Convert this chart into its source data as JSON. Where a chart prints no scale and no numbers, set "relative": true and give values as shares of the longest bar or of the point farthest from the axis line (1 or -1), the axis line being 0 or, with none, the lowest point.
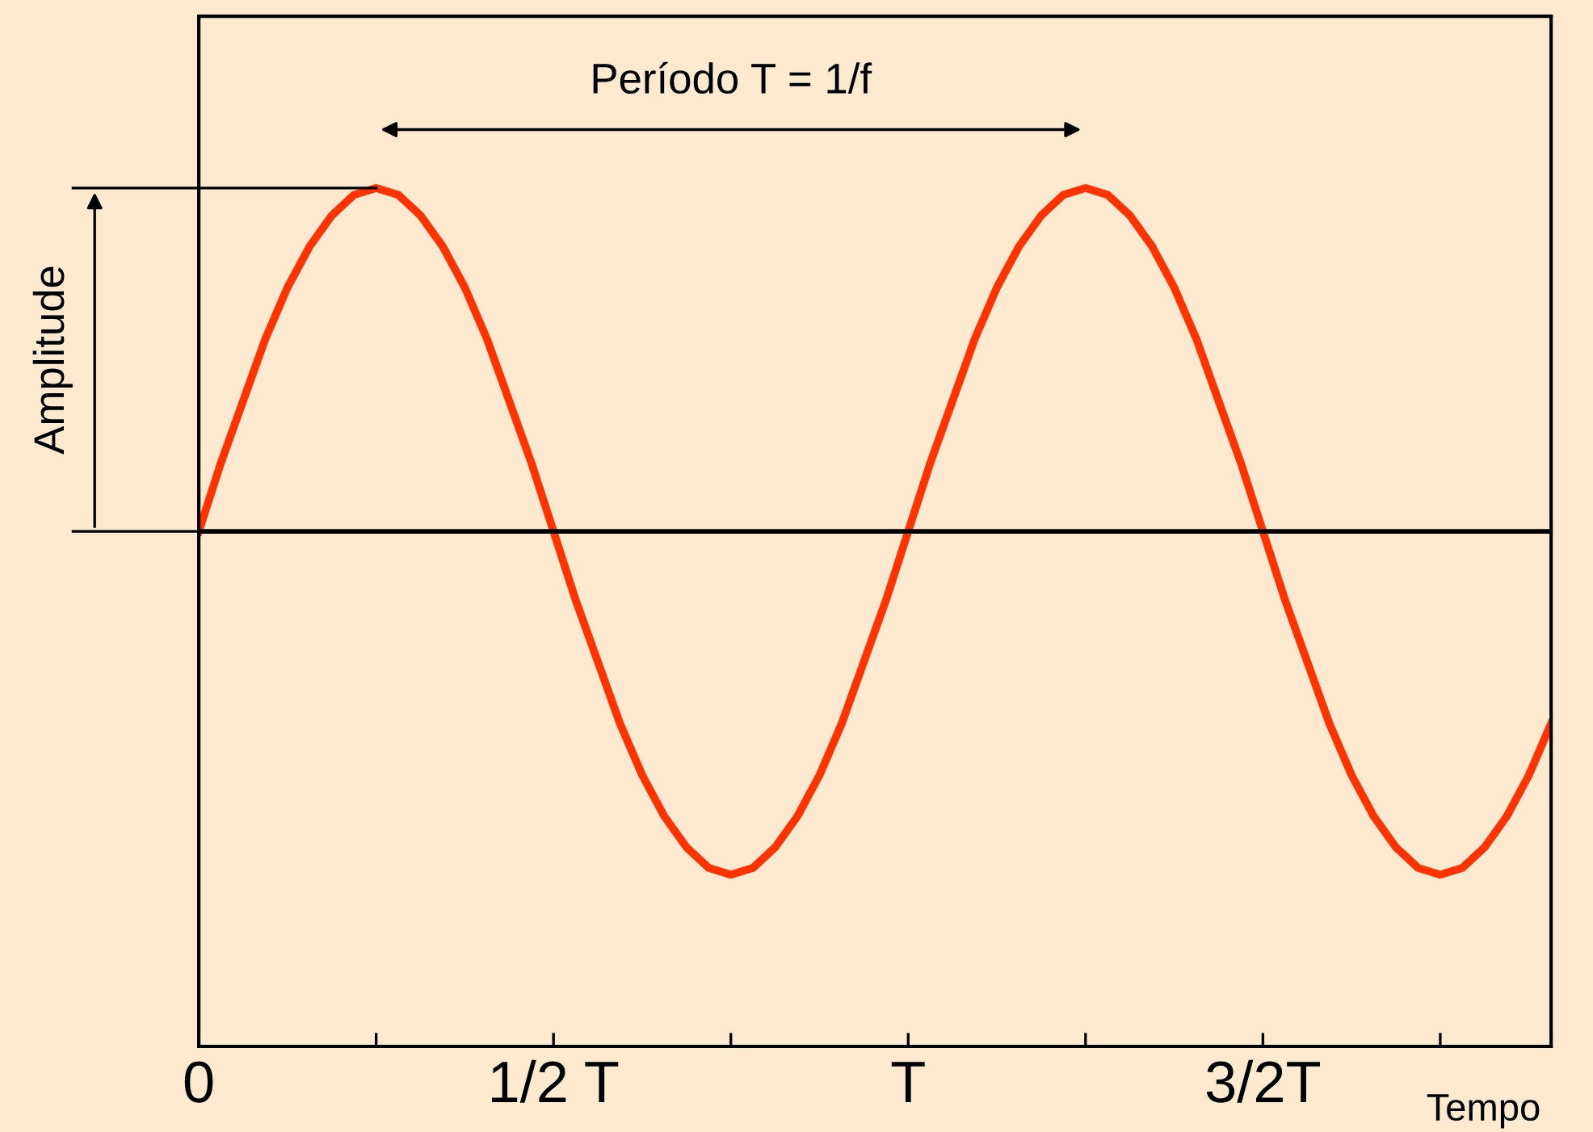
{
  "chart_data": {
    "type": "line",
    "relative": true,
    "xlabel": "Tempo",
    "categories": [
      "0",
      null,
      null,
      null,
      null,
      null,
      null,
      null,
      null,
      null,
      null,
      null,
      null,
      null,
      null,
      null,
      "1/2 T",
      null,
      null,
      null,
      null,
      null,
      null,
      null,
      null,
      null,
      null,
      null,
      null,
      null,
      null,
      null,
      "T",
      null,
      null,
      null,
      null,
      null,
      null,
      null,
      null,
      null,
      null,
      null,
      null,
      null,
      null,
      null,
      "3/2T",
      null,
      null,
      null,
      null,
      null,
      null,
      null,
      null,
      null,
      null,
      null,
      null,
      null
    ],
    "series": [
      {
        "color": "#ff3300",
        "values": [
          0,
          0.2,
          0.38,
          0.56,
          0.71,
          0.83,
          0.92,
          0.98,
          1,
          0.98,
          0.92,
          0.83,
          0.71,
          0.56,
          0.38,
          0.2,
          0,
          -0.2,
          -0.38,
          -0.56,
          -0.71,
          -0.83,
          -0.92,
          -0.98,
          -1,
          -0.98,
          -0.92,
          -0.83,
          -0.71,
          -0.56,
          -0.38,
          -0.2,
          0,
          0.2,
          0.38,
          0.56,
          0.71,
          0.83,
          0.92,
          0.98,
          1,
          0.98,
          0.92,
          0.83,
          0.71,
          0.56,
          0.38,
          0.2,
          0,
          -0.2,
          -0.38,
          -0.56,
          -0.71,
          -0.83,
          -0.92,
          -0.98,
          -1,
          -0.98,
          -0.92,
          -0.83,
          -0.71,
          -0.56
        ]
      }
    ],
    "annotations": [
      "Período T = 1/f",
      "Amplitude"
    ],
    "tick_labels": "x",
    "grid": false,
    "legend": false,
    "marker": "none",
    "line_style": "solid"
  }
}
